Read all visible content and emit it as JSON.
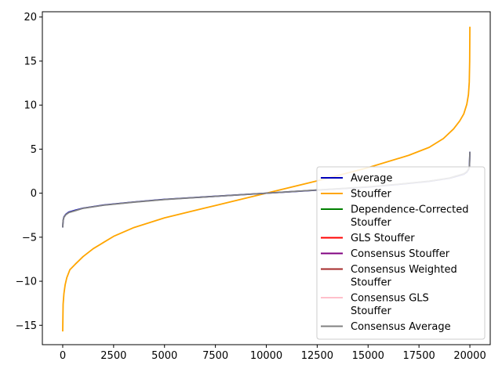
{
  "chart_data": {
    "type": "line",
    "title": "",
    "xlabel": "",
    "ylabel": "",
    "xlim": [
      -1000,
      21000
    ],
    "ylim": [
      -17.2,
      20.6
    ],
    "xticks": [
      0,
      2500,
      5000,
      7500,
      10000,
      12500,
      15000,
      17500,
      20000
    ],
    "xtick_labels": [
      "0",
      "2500",
      "5000",
      "7500",
      "10000",
      "12500",
      "15000",
      "17500",
      "20000"
    ],
    "yticks": [
      -15,
      -10,
      -5,
      0,
      5,
      10,
      15,
      20
    ],
    "ytick_labels": [
      "−15",
      "−10",
      "−5",
      "0",
      "5",
      "10",
      "15",
      "20"
    ],
    "grid": false,
    "legend_position": "lower-right",
    "legend": [
      {
        "lines": [
          "Average"
        ],
        "color": "#0000bb"
      },
      {
        "lines": [
          "Stouffer"
        ],
        "color": "#ffa500"
      },
      {
        "lines": [
          "Dependence-Corrected",
          "Stouffer"
        ],
        "color": "#008000"
      },
      {
        "lines": [
          "GLS Stouffer"
        ],
        "color": "#ff0000"
      },
      {
        "lines": [
          "Consensus Stouffer"
        ],
        "color": "#800080"
      },
      {
        "lines": [
          "Consensus Weighted",
          "Stouffer"
        ],
        "color": "#a52a2a"
      },
      {
        "lines": [
          "Consensus GLS",
          "Stouffer"
        ],
        "color": "#ffc0cb"
      },
      {
        "lines": [
          "Consensus Average"
        ],
        "color": "#808080"
      }
    ],
    "series": [
      {
        "name": "Stouffer",
        "color": "#ffa500",
        "points": [
          [
            0,
            -15.7
          ],
          [
            20,
            -12.6
          ],
          [
            60,
            -11.4
          ],
          [
            120,
            -10.4
          ],
          [
            200,
            -9.6
          ],
          [
            350,
            -8.7
          ],
          [
            600,
            -8.1
          ],
          [
            1000,
            -7.2
          ],
          [
            1500,
            -6.3
          ],
          [
            2000,
            -5.6
          ],
          [
            2500,
            -4.9
          ],
          [
            3500,
            -3.9
          ],
          [
            5000,
            -2.8
          ],
          [
            7500,
            -1.4
          ],
          [
            10000,
            0.0
          ],
          [
            12500,
            1.4
          ],
          [
            15000,
            2.9
          ],
          [
            17000,
            4.3
          ],
          [
            18000,
            5.2
          ],
          [
            18700,
            6.2
          ],
          [
            19200,
            7.3
          ],
          [
            19500,
            8.2
          ],
          [
            19700,
            9.0
          ],
          [
            19850,
            10.1
          ],
          [
            19930,
            11.2
          ],
          [
            19970,
            12.6
          ],
          [
            19990,
            15.0
          ],
          [
            20000,
            18.9
          ]
        ]
      },
      {
        "name": "Average",
        "color": "#0000bb",
        "points": [
          [
            0,
            -3.9
          ],
          [
            20,
            -3.1
          ],
          [
            60,
            -2.7
          ],
          [
            150,
            -2.4
          ],
          [
            300,
            -2.15
          ],
          [
            600,
            -1.95
          ],
          [
            1000,
            -1.7
          ],
          [
            2000,
            -1.35
          ],
          [
            3500,
            -1.0
          ],
          [
            5000,
            -0.7
          ],
          [
            7500,
            -0.35
          ],
          [
            10000,
            0.0
          ],
          [
            12500,
            0.35
          ],
          [
            15000,
            0.7
          ],
          [
            16500,
            1.0
          ],
          [
            18000,
            1.35
          ],
          [
            19000,
            1.7
          ],
          [
            19400,
            1.95
          ],
          [
            19700,
            2.15
          ],
          [
            19850,
            2.4
          ],
          [
            19940,
            2.7
          ],
          [
            19980,
            3.1
          ],
          [
            20000,
            4.7
          ]
        ]
      },
      {
        "name": "Consensus Average",
        "color": "#808080",
        "points": [
          [
            0,
            -3.9
          ],
          [
            20,
            -3.1
          ],
          [
            60,
            -2.75
          ],
          [
            150,
            -2.45
          ],
          [
            300,
            -2.2
          ],
          [
            600,
            -2.0
          ],
          [
            1000,
            -1.72
          ],
          [
            2000,
            -1.37
          ],
          [
            3500,
            -1.02
          ],
          [
            5000,
            -0.72
          ],
          [
            7500,
            -0.36
          ],
          [
            10000,
            0.0
          ],
          [
            12500,
            0.36
          ],
          [
            15000,
            0.72
          ],
          [
            16500,
            1.02
          ],
          [
            18000,
            1.37
          ],
          [
            19000,
            1.72
          ],
          [
            19400,
            2.0
          ],
          [
            19700,
            2.2
          ],
          [
            19850,
            2.45
          ],
          [
            19940,
            2.75
          ],
          [
            19980,
            3.1
          ],
          [
            20000,
            4.7
          ]
        ]
      }
    ]
  }
}
